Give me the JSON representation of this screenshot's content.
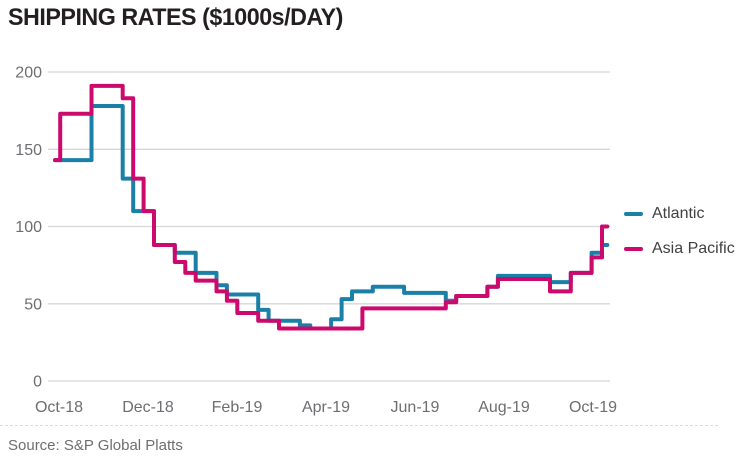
{
  "title": "SHIPPING RATES ($1000s/DAY)",
  "source": "Source: S&P Global Platts",
  "colors": {
    "atlantic": "#1b80a8",
    "asia_pacific": "#cc0a6e",
    "title_text": "#231f20",
    "axis_text": "#6d6e71",
    "legend_text": "#414042",
    "gridline": "#d6d6d6",
    "background": "#ffffff"
  },
  "chart_data": {
    "type": "line",
    "title": "SHIPPING RATES ($1000s/DAY)",
    "xlabel": "",
    "ylabel": "$1000s/DAY",
    "x_unit": "weekly points from Oct-2018 to mid-Oct-2019",
    "x_tick_labels": [
      "Oct-18",
      "Dec-18",
      "Feb-19",
      "Apr-19",
      "Jun-19",
      "Aug-19",
      "Oct-19"
    ],
    "y_ticks": [
      0,
      50,
      100,
      150,
      200
    ],
    "ylim": [
      0,
      200
    ],
    "grid": "horizontal",
    "legend_position": "right",
    "series": [
      {
        "name": "Atlantic",
        "color": "#1b80a8",
        "values": [
          143,
          143,
          143,
          143,
          178,
          178,
          178,
          131,
          110,
          110,
          88,
          88,
          83,
          83,
          70,
          70,
          62,
          56,
          56,
          56,
          46,
          39,
          39,
          39,
          36,
          34,
          34,
          40,
          53,
          58,
          58,
          61,
          61,
          61,
          57,
          57,
          57,
          57,
          52,
          55,
          55,
          55,
          61,
          68,
          68,
          68,
          68,
          68,
          64,
          64,
          70,
          70,
          83,
          88
        ]
      },
      {
        "name": "Asia Pacific",
        "color": "#cc0a6e",
        "values": [
          143,
          173,
          173,
          173,
          191,
          191,
          191,
          183,
          131,
          110,
          88,
          88,
          77,
          70,
          65,
          65,
          58,
          52,
          44,
          44,
          39,
          39,
          34,
          34,
          34,
          34,
          34,
          34,
          34,
          34,
          47,
          47,
          47,
          47,
          47,
          47,
          47,
          47,
          51,
          55,
          55,
          55,
          61,
          66,
          66,
          66,
          66,
          66,
          58,
          58,
          70,
          70,
          80,
          100
        ]
      }
    ]
  }
}
